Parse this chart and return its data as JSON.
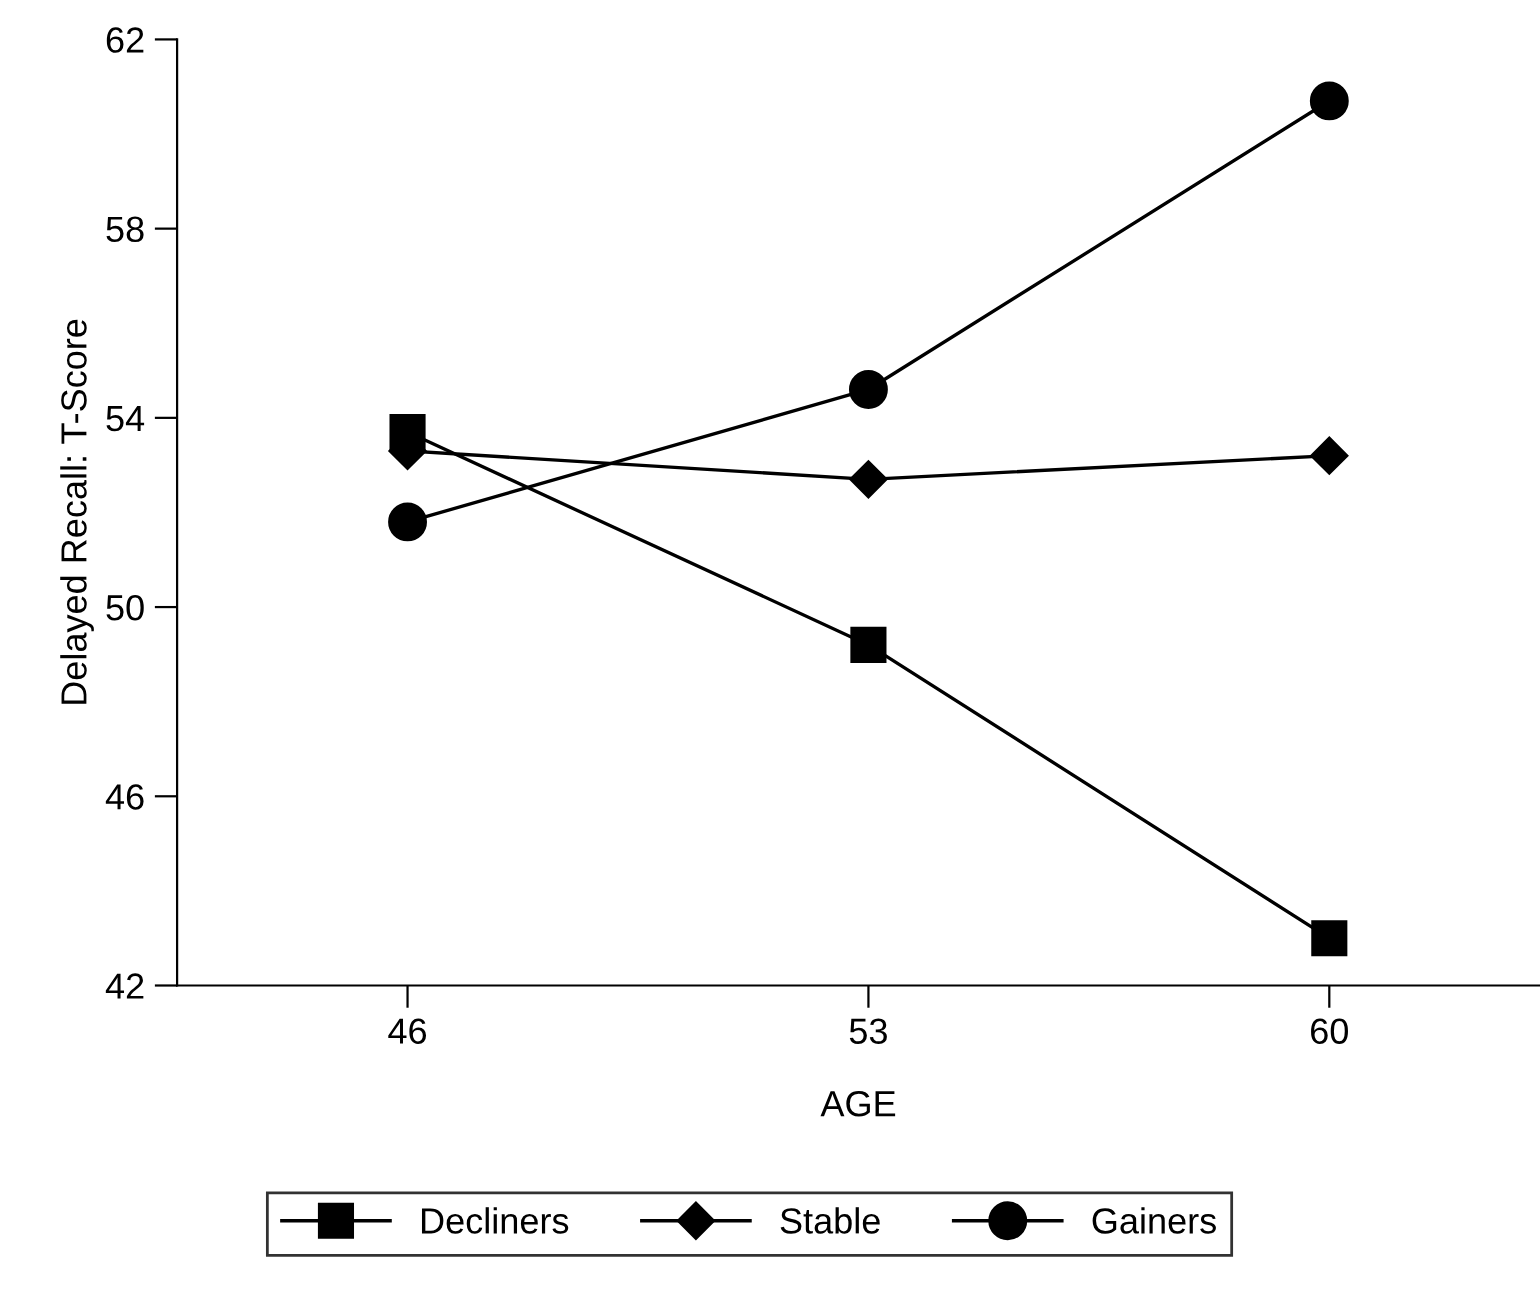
{
  "chart_data": {
    "type": "line",
    "xlabel": "AGE",
    "ylabel": "Delayed Recall: T-Score",
    "x": [
      46,
      53,
      60
    ],
    "series": [
      {
        "name": "Decliners",
        "color": "#000000",
        "marker": "square",
        "values": [
          53.7,
          49.2,
          43.0
        ]
      },
      {
        "name": "Stable",
        "color": "#000000",
        "marker": "diamond",
        "values": [
          53.3,
          52.7,
          53.2
        ]
      },
      {
        "name": "Gainers",
        "color": "#000000",
        "marker": "circle",
        "values": [
          51.8,
          54.6,
          60.7
        ]
      }
    ],
    "xlim": [
      42.5,
      63.2
    ],
    "xticks": [
      46,
      53,
      60
    ],
    "ylim": [
      42,
      62
    ],
    "yticks": [
      42,
      46,
      50,
      54,
      58,
      62
    ],
    "grid": false,
    "legend": "bottom",
    "line_style": "solid"
  }
}
